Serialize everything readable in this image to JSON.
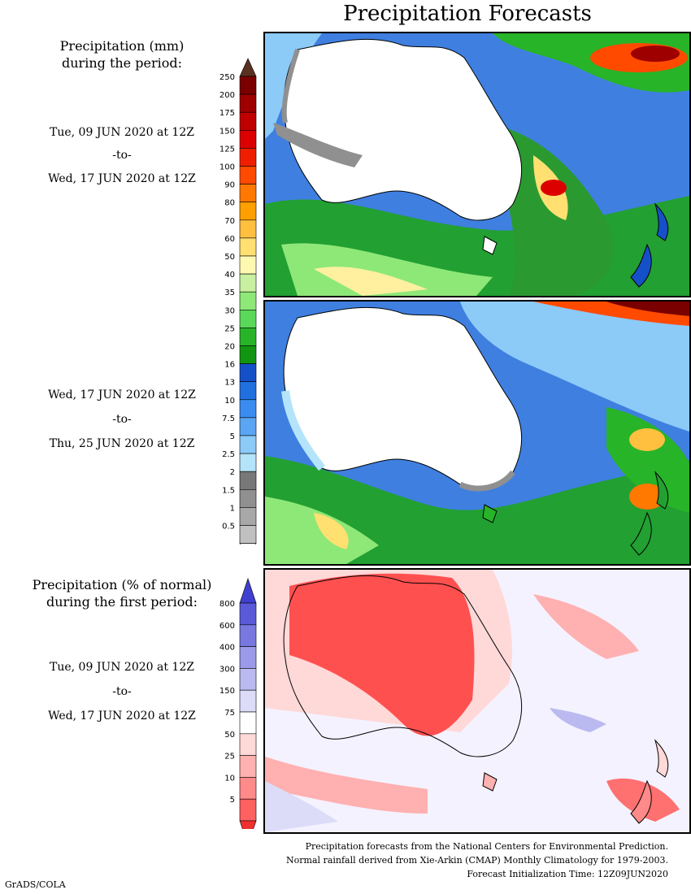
{
  "title": "Precipitation Forecasts",
  "amount_section": {
    "title_line1": "Precipitation (mm)",
    "title_line2": "during the period:"
  },
  "periods": [
    {
      "start": "Tue, 09 JUN 2020 at 12Z",
      "sep": "-to-",
      "end": "Wed, 17 JUN 2020 at 12Z"
    },
    {
      "start": "Wed, 17 JUN 2020 at 12Z",
      "sep": "-to-",
      "end": "Thu, 25 JUN 2020 at 12Z"
    }
  ],
  "percent_section": {
    "title_line1": "Precipitation (% of normal)",
    "title_line2": "during the first period:",
    "start": "Tue, 09 JUN 2020 at 12Z",
    "sep": "-to-",
    "end": "Wed, 17 JUN 2020 at 12Z"
  },
  "mm_scale": {
    "labels": [
      "250",
      "200",
      "175",
      "150",
      "125",
      "100",
      "90",
      "80",
      "70",
      "60",
      "50",
      "40",
      "35",
      "30",
      "25",
      "20",
      "16",
      "13",
      "10",
      "7.5",
      "5",
      "2.5",
      "2",
      "1.5",
      "1",
      "0.5"
    ],
    "colors": [
      "#7a0000",
      "#9e0000",
      "#c00000",
      "#dc0000",
      "#f01e00",
      "#ff4a00",
      "#ff7800",
      "#ffa000",
      "#ffc040",
      "#ffe070",
      "#fff8b0",
      "#c8f0a0",
      "#8ee878",
      "#5ad85a",
      "#28b428",
      "#129612",
      "#1650c8",
      "#2070e0",
      "#3a8cf0",
      "#5aa6f4",
      "#8ccaf8",
      "#b4e4fa",
      "#787878",
      "#909090",
      "#a8a8a8",
      "#c0c0c0"
    ],
    "top_cap": "#5a3020",
    "bottom_cap": "#ffffff"
  },
  "pct_scale": {
    "labels": [
      "800",
      "600",
      "400",
      "300",
      "150",
      "75",
      "50",
      "25",
      "10",
      "5"
    ],
    "colors": [
      "#5a5ad8",
      "#7878e0",
      "#9a9ae8",
      "#babaf0",
      "#dcdcf8",
      "#ffffff",
      "#ffd8d8",
      "#ffb0b0",
      "#ff8a8a",
      "#ff6060"
    ],
    "top_cap": "#4040d0",
    "bottom_cap": "#f03030"
  },
  "footer": {
    "line1": "Precipitation forecasts from the National Centers for Environmental Prediction.",
    "line2": "Normal rainfall derived from Xie-Arkin (CMAP) Monthly Climatology for 1979-2003.",
    "line3": "Forecast Initialization Time: 12Z09JUN2020"
  },
  "credit": "GrADS/COLA"
}
